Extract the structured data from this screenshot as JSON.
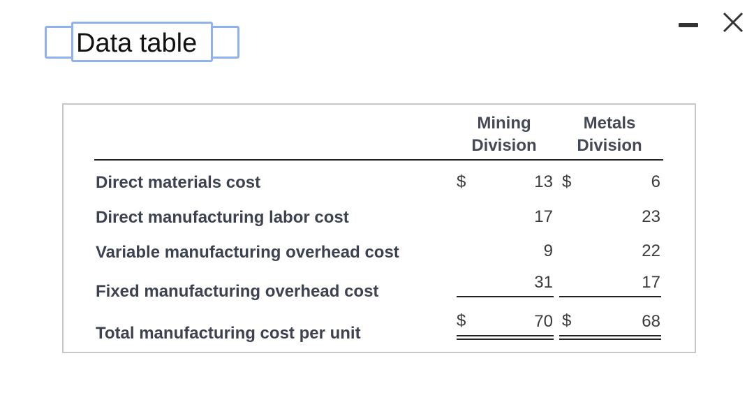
{
  "dialog": {
    "title": "Data table"
  },
  "table": {
    "columns": [
      {
        "line1": "Mining",
        "line2": "Division"
      },
      {
        "line1": "Metals",
        "line2": "Division"
      }
    ],
    "currency_symbol": "$",
    "rows": [
      {
        "label": "Direct materials cost",
        "mining": "13",
        "metals": "6"
      },
      {
        "label": "Direct manufacturing labor cost",
        "mining": "17",
        "metals": "23"
      },
      {
        "label": "Variable manufacturing overhead cost",
        "mining": "9",
        "metals": "22"
      },
      {
        "label": "Fixed manufacturing overhead cost",
        "mining": "31",
        "metals": "17"
      },
      {
        "label": "Total manufacturing cost per unit",
        "mining": "70",
        "metals": "68"
      }
    ]
  }
}
